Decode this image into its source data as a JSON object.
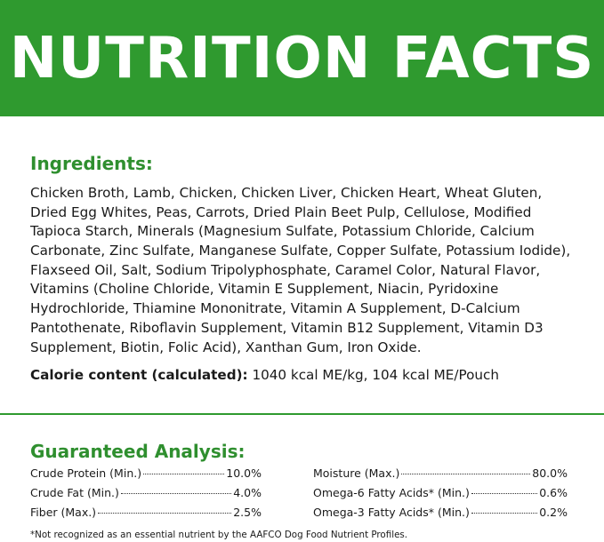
{
  "header": {
    "title": "NUTRITION FACTS"
  },
  "ingredients": {
    "heading": "Ingredients:",
    "lines": [
      "Chicken Broth, Lamb, Chicken, Chicken Liver, Chicken Heart, Wheat Gluten,",
      "Dried Egg Whites, Peas, Carrots, Dried Plain Beet Pulp, Cellulose, Modified",
      "Tapioca Starch, Minerals (Magnesium Sulfate, Potassium Chloride, Calcium",
      "Carbonate, Zinc Sulfate, Manganese Sulfate, Copper Sulfate, Potassium Iodide),",
      "Flaxseed Oil, Salt, Sodium Tripolyphosphate, Caramel Color, Natural Flavor,",
      "Vitamins (Choline Chloride, Vitamin E Supplement, Niacin, Pyridoxine",
      "Hydrochloride, Thiamine Mononitrate, Vitamin A Supplement, D-Calcium",
      "Pantothenate, Riboflavin Supplement, Vitamin B12 Supplement, Vitamin D3",
      "Supplement, Biotin, Folic Acid), Xanthan Gum, Iron Oxide."
    ],
    "calorie_label": "Calorie content (calculated):",
    "calorie_value": "1040 kcal ME/kg, 104 kcal ME/Pouch"
  },
  "analysis": {
    "heading": "Guaranteed Analysis:",
    "left": [
      {
        "name": "Crude Protein (Min.)",
        "value": "10.0%"
      },
      {
        "name": "Crude Fat (Min.)",
        "value": "4.0%"
      },
      {
        "name": "Fiber (Max.)",
        "value": "2.5%"
      }
    ],
    "right": [
      {
        "name": "Moisture (Max.)",
        "value": "80.0%"
      },
      {
        "name": "Omega-6 Fatty Acids* (Min.)",
        "value": "0.6%"
      },
      {
        "name": "Omega-3 Fatty Acids* (Min.)",
        "value": "0.2%"
      }
    ],
    "footnote": "*Not recognized as an essential nutrient by the AAFCO Dog Food Nutrient Profiles."
  }
}
